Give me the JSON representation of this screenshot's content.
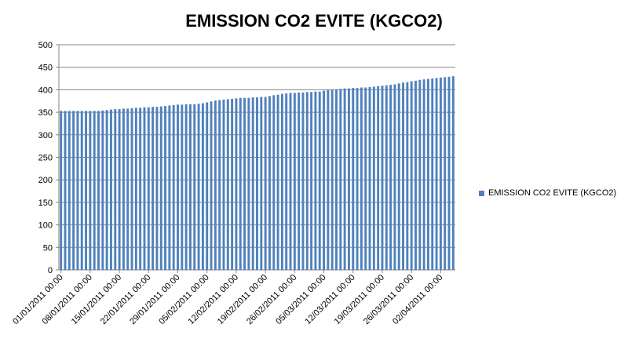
{
  "chart_data": {
    "type": "bar",
    "title": "EMISSION CO2 EVITE (KGCO2)",
    "xlabel": "",
    "ylabel": "",
    "ylim": [
      0,
      500
    ],
    "yticks": [
      0,
      50,
      100,
      150,
      200,
      250,
      300,
      350,
      400,
      450,
      500
    ],
    "x_tick_labels": [
      "01/01/2011 00:00",
      "08/01/2011 00:00",
      "15/01/2011 00:00",
      "22/01/2011 00:00",
      "29/01/2011 00:00",
      "05/02/2011 00:00",
      "12/02/2011 00:00",
      "19/02/2011 00:00",
      "26/02/2011 00:00",
      "05/03/2011 00:00",
      "12/03/2011 00:00",
      "19/03/2011 00:00",
      "26/03/2011 00:00",
      "02/04/2011 00:00"
    ],
    "start_date": "01/01/2011 00:00",
    "interval_days": 1,
    "grid": true,
    "legend_position": "right",
    "series": [
      {
        "name": "EMISSION CO2 EVITE  (KGCO2)",
        "color": "#4f81bd",
        "values": [
          353,
          353,
          353,
          353,
          353,
          353,
          353,
          353,
          353,
          353,
          354,
          355,
          356,
          357,
          357,
          358,
          358,
          359,
          360,
          360,
          361,
          361,
          362,
          362,
          363,
          364,
          365,
          366,
          367,
          367,
          368,
          368,
          368,
          369,
          370,
          372,
          374,
          376,
          377,
          378,
          379,
          380,
          381,
          382,
          382,
          382,
          383,
          383,
          384,
          384,
          386,
          388,
          389,
          391,
          392,
          393,
          393,
          394,
          394,
          395,
          395,
          396,
          396,
          398,
          399,
          400,
          401,
          402,
          403,
          403,
          404,
          404,
          405,
          405,
          406,
          407,
          408,
          409,
          410,
          411,
          412,
          414,
          416,
          417,
          419,
          420,
          422,
          423,
          424,
          425,
          426,
          427,
          428,
          429,
          430
        ]
      }
    ]
  }
}
